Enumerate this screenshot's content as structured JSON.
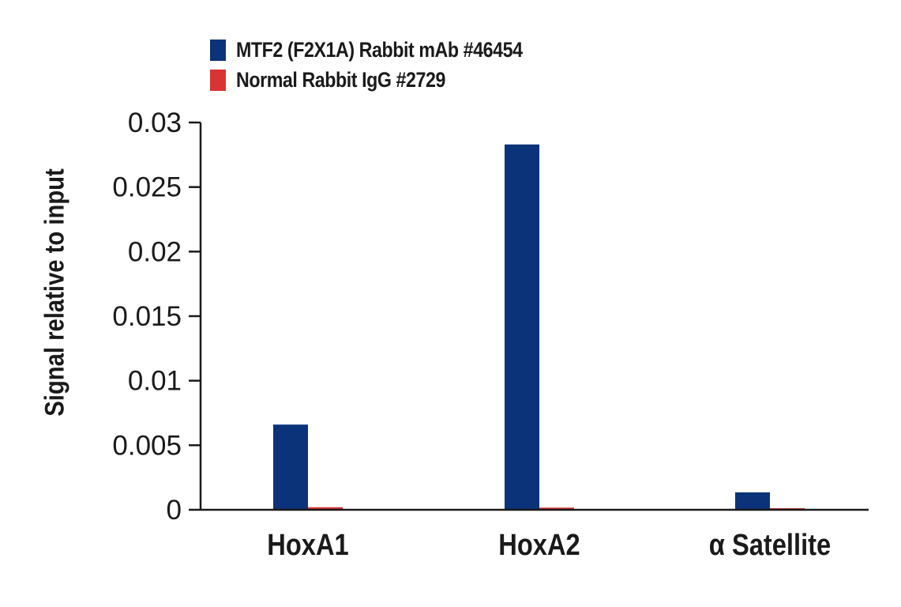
{
  "legend": {
    "items": [
      {
        "label": "MTF2 (F2X1A) Rabbit mAb #46454",
        "color": "#0b3379"
      },
      {
        "label": "Normal Rabbit IgG #2729",
        "color": "#d93433"
      }
    ]
  },
  "axis": {
    "y_title": "Signal relative to input",
    "y_ticks": [
      "0",
      "0.005",
      "0.01",
      "0.015",
      "0.02",
      "0.025",
      "0.03"
    ],
    "categories": [
      "HoxA1",
      "HoxA2",
      "α Satellite"
    ]
  },
  "colors": {
    "primary": "#0b3379",
    "control": "#d93433",
    "axis": "#1a1a1a"
  },
  "chart_data": {
    "type": "bar",
    "title": "",
    "xlabel": "",
    "ylabel": "Signal relative to input",
    "categories": [
      "HoxA1",
      "HoxA2",
      "α Satellite"
    ],
    "series": [
      {
        "name": "MTF2 (F2X1A) Rabbit mAb #46454",
        "color": "#0b3379",
        "values": [
          0.0066,
          0.0283,
          0.00135
        ]
      },
      {
        "name": "Normal Rabbit IgG #2729",
        "color": "#d93433",
        "values": [
          0.0002,
          0.00017,
          0.0001
        ]
      }
    ],
    "ylim": [
      0,
      0.03
    ],
    "yticks": [
      0,
      0.005,
      0.01,
      0.015,
      0.02,
      0.025,
      0.03
    ],
    "grid": false,
    "legend_position": "top-left"
  }
}
